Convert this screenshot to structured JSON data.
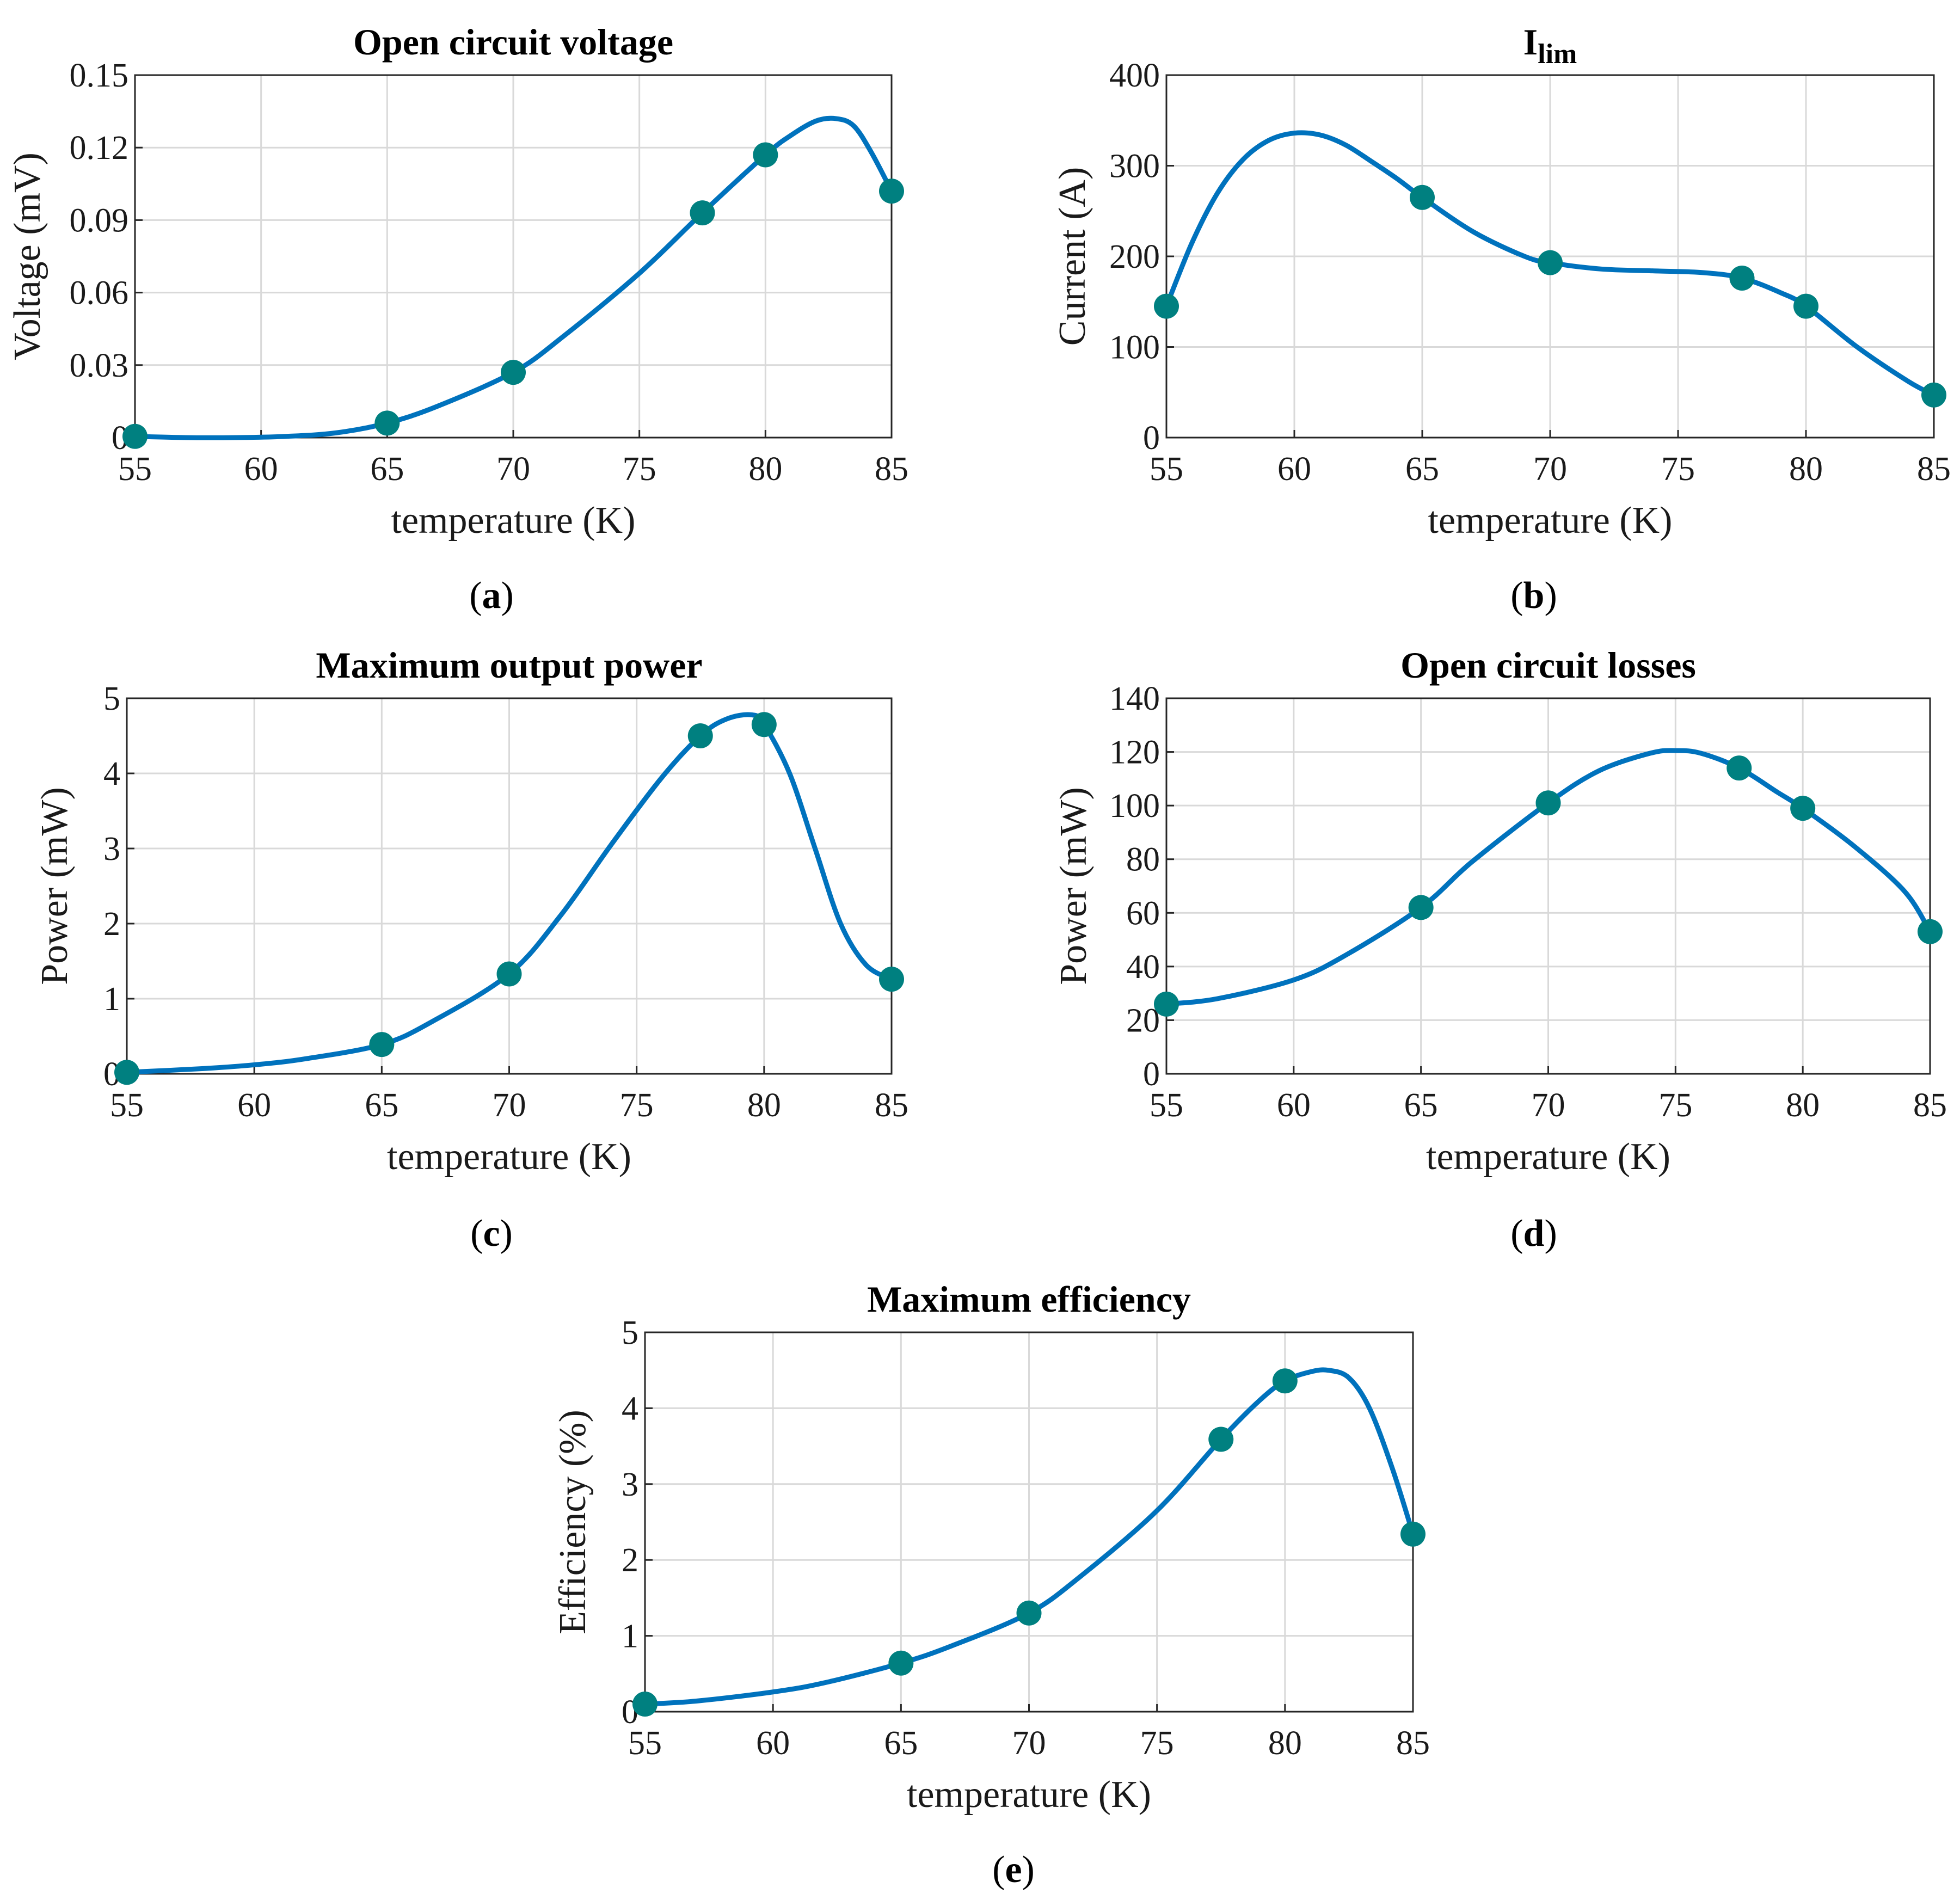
{
  "chart_data": [
    {
      "type": "line",
      "panel": "a",
      "title": "Open circuit voltage",
      "xlabel": "temperature (K)",
      "ylabel": "Voltage (mV)",
      "xlim": [
        55,
        85
      ],
      "ylim": [
        0,
        0.15
      ],
      "xticks": [
        55,
        60,
        65,
        70,
        75,
        80,
        85
      ],
      "yticks": [
        0,
        0.03,
        0.06,
        0.09,
        0.12,
        0.15
      ],
      "ytick_labels": [
        "0",
        "0.03",
        "0.06",
        "0.09",
        "0.12",
        "0.15"
      ],
      "grid": true,
      "line_color": "#0072BD",
      "marker_color": "#008080",
      "points": {
        "x": [
          55,
          65,
          70,
          77.5,
          80,
          85
        ],
        "y": [
          0.0005,
          0.006,
          0.027,
          0.093,
          0.117,
          0.102
        ]
      },
      "curve": {
        "x": [
          55,
          57,
          59,
          61,
          63,
          65,
          67,
          70,
          72,
          75,
          77.5,
          80,
          81,
          82,
          82.8,
          83.5,
          84.2,
          85
        ],
        "y": [
          0.0005,
          0.0,
          0.0,
          0.0005,
          0.002,
          0.006,
          0.013,
          0.027,
          0.042,
          0.068,
          0.093,
          0.117,
          0.125,
          0.131,
          0.132,
          0.129,
          0.118,
          0.102
        ]
      }
    },
    {
      "type": "line",
      "panel": "b",
      "title": "I",
      "title_subscript": "lim",
      "xlabel": "temperature (K)",
      "ylabel": "Current (A)",
      "xlim": [
        55,
        85
      ],
      "ylim": [
        0,
        400
      ],
      "xticks": [
        55,
        60,
        65,
        70,
        75,
        80,
        85
      ],
      "yticks": [
        0,
        100,
        200,
        300,
        400
      ],
      "ytick_labels": [
        "0",
        "100",
        "200",
        "300",
        "400"
      ],
      "grid": true,
      "line_color": "#0072BD",
      "marker_color": "#008080",
      "points": {
        "x": [
          55,
          65,
          70,
          77.5,
          80,
          85
        ],
        "y": [
          145,
          265,
          193,
          176,
          145,
          47
        ]
      },
      "curve": {
        "x": [
          55,
          56,
          57,
          58,
          59,
          60,
          61,
          62,
          63,
          64,
          65,
          67,
          69,
          70,
          72,
          74,
          76,
          77.5,
          79,
          80,
          82,
          84,
          85
        ],
        "y": [
          145,
          215,
          270,
          307,
          328,
          336,
          334,
          323,
          305,
          286,
          265,
          227,
          200,
          193,
          186,
          184,
          182,
          176,
          160,
          145,
          100,
          62,
          47
        ]
      }
    },
    {
      "type": "line",
      "panel": "c",
      "title": "Maximum output power",
      "xlabel": "temperature (K)",
      "ylabel": "Power (mW)",
      "xlim": [
        55,
        85
      ],
      "ylim": [
        0,
        5
      ],
      "xticks": [
        55,
        60,
        65,
        70,
        75,
        80,
        85
      ],
      "yticks": [
        0,
        1,
        2,
        3,
        4,
        5
      ],
      "ytick_labels": [
        "0",
        "1",
        "2",
        "3",
        "4",
        "5"
      ],
      "grid": true,
      "line_color": "#0072BD",
      "marker_color": "#008080",
      "points": {
        "x": [
          55,
          65,
          70,
          77.5,
          80,
          85
        ],
        "y": [
          0.02,
          0.39,
          1.33,
          4.5,
          4.65,
          1.26
        ]
      },
      "curve": {
        "x": [
          55,
          58,
          60,
          62,
          65,
          67,
          70,
          72,
          74,
          76,
          77.5,
          78.5,
          79.5,
          80,
          81,
          82,
          83,
          84,
          85
        ],
        "y": [
          0.02,
          0.07,
          0.12,
          0.2,
          0.39,
          0.7,
          1.33,
          2.1,
          3.05,
          3.95,
          4.5,
          4.72,
          4.78,
          4.65,
          4.0,
          3.0,
          2.0,
          1.45,
          1.26
        ]
      }
    },
    {
      "type": "line",
      "panel": "d",
      "title": "Open circuit losses",
      "xlabel": "temperature (K)",
      "ylabel": "Power (mW)",
      "xlim": [
        55,
        85
      ],
      "ylim": [
        0,
        140
      ],
      "xticks": [
        55,
        60,
        65,
        70,
        75,
        80,
        85
      ],
      "yticks": [
        0,
        20,
        40,
        60,
        80,
        100,
        120,
        140
      ],
      "ytick_labels": [
        "0",
        "20",
        "40",
        "60",
        "80",
        "100",
        "120",
        "140"
      ],
      "grid": true,
      "line_color": "#0072BD",
      "marker_color": "#008080",
      "points": {
        "x": [
          55,
          65,
          70,
          77.5,
          80,
          85
        ],
        "y": [
          26,
          62,
          101,
          114,
          99,
          53
        ]
      },
      "curve": {
        "x": [
          55,
          57,
          60,
          62,
          65,
          67,
          70,
          72,
          74,
          75,
          76,
          77.5,
          79,
          80,
          82,
          84,
          85
        ],
        "y": [
          26,
          28,
          35,
          44,
          62,
          79,
          101,
          113,
          119.5,
          120.5,
          119.5,
          114,
          105,
          99,
          85,
          68,
          53
        ]
      }
    },
    {
      "type": "line",
      "panel": "e",
      "title": "Maximum efficiency",
      "xlabel": "temperature (K)",
      "ylabel": "Efficiency (%)",
      "xlim": [
        55,
        85
      ],
      "ylim": [
        0,
        5
      ],
      "xticks": [
        55,
        60,
        65,
        70,
        75,
        80,
        85
      ],
      "yticks": [
        0,
        1,
        2,
        3,
        4,
        5
      ],
      "ytick_labels": [
        "0",
        "1",
        "2",
        "3",
        "4",
        "5"
      ],
      "grid": true,
      "line_color": "#0072BD",
      "marker_color": "#008080",
      "points": {
        "x": [
          55,
          65,
          70,
          77.5,
          80,
          85
        ],
        "y": [
          0.1,
          0.64,
          1.3,
          3.59,
          4.36,
          2.34
        ]
      },
      "curve": {
        "x": [
          55,
          57,
          60,
          62,
          65,
          67,
          70,
          72,
          75,
          77.5,
          79,
          80,
          81,
          81.7,
          82.5,
          83.3,
          84.2,
          85
        ],
        "y": [
          0.1,
          0.14,
          0.26,
          0.38,
          0.64,
          0.87,
          1.3,
          1.78,
          2.65,
          3.59,
          4.1,
          4.36,
          4.48,
          4.5,
          4.4,
          4.0,
          3.2,
          2.34
        ]
      }
    }
  ],
  "panel_labels": [
    "a",
    "b",
    "c",
    "d",
    "e"
  ]
}
